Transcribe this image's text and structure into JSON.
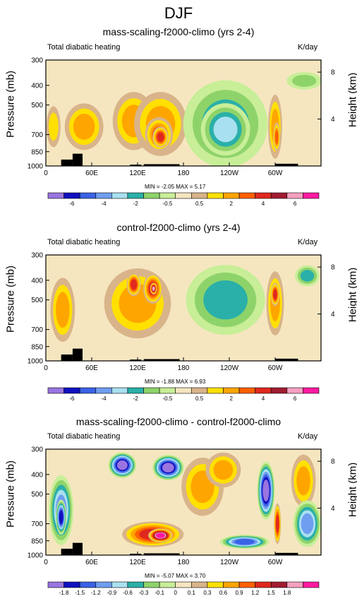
{
  "figure": {
    "title": "DJF"
  },
  "colors": {
    "frame": "#000000",
    "background": "#ffffff"
  },
  "chart_data": [
    {
      "type": "heatmap",
      "title": "mass-scaling-f2000-climo (yrs 2-4)",
      "left_label": "Total diabatic heating",
      "right_label": "K/day",
      "ylabel": "Pressure (mb)",
      "y2label": "Height (km)",
      "x_ticks": [
        "0",
        "60E",
        "120E",
        "180",
        "120W",
        "60W"
      ],
      "y_ticks": [
        "300",
        "400",
        "500",
        "700",
        "850",
        "1000"
      ],
      "y2_ticks": [
        "8",
        "4"
      ],
      "ylim": [
        1000,
        300
      ],
      "y_scale": "log",
      "min_max_text": "MIN = -2.05  MAX =  5.17",
      "min": -2.05,
      "max": 5.17,
      "colorbar": {
        "colors": [
          "#9a74e0",
          "#1010c0",
          "#3a62e6",
          "#6f9df0",
          "#a9e0f0",
          "#2ab0a8",
          "#8ed36a",
          "#c8ee98",
          "#f5e6c0",
          "#d9b48a",
          "#ffe000",
          "#ffa500",
          "#ff6000",
          "#e0281e",
          "#a01c30",
          "#f5a0c0",
          "#ff1aa0"
        ],
        "labels": [
          "-6",
          "-4",
          "-2",
          "-0.5",
          "0.5",
          "2",
          "4",
          "6"
        ]
      },
      "features": [
        {
          "lon": 50,
          "p": 640,
          "rx": 22,
          "ry": 0.4,
          "level": 11
        },
        {
          "lon": 115,
          "p": 600,
          "rx": 24,
          "ry": 0.5,
          "level": 11
        },
        {
          "lon": 150,
          "p": 620,
          "rx": 30,
          "ry": 0.55,
          "level": 11
        },
        {
          "lon": 148,
          "p": 700,
          "rx": 16,
          "ry": 0.3,
          "level": 12
        },
        {
          "lon": 150,
          "p": 720,
          "rx": 9,
          "ry": 0.18,
          "level": 13
        },
        {
          "lon": 10,
          "p": 640,
          "rx": 8,
          "ry": 0.35,
          "level": 10
        },
        {
          "lon": 235,
          "p": 620,
          "rx": 48,
          "ry": 0.75,
          "level": 5
        },
        {
          "lon": 235,
          "p": 660,
          "rx": 28,
          "ry": 0.45,
          "level": 4
        },
        {
          "lon": 300,
          "p": 640,
          "rx": 8,
          "ry": 0.55,
          "level": 11
        },
        {
          "lon": 302,
          "p": 720,
          "rx": 4,
          "ry": 0.25,
          "level": 12
        },
        {
          "lon": 338,
          "p": 380,
          "rx": 20,
          "ry": 0.15,
          "level": 6
        }
      ]
    },
    {
      "type": "heatmap",
      "title": "control-f2000-climo (yrs 2-4)",
      "left_label": "Total diabatic heating",
      "right_label": "K/day",
      "ylabel": "Pressure (mb)",
      "y2label": "Height (km)",
      "x_ticks": [
        "0",
        "60E",
        "120E",
        "180",
        "120W",
        "60W"
      ],
      "y_ticks": [
        "300",
        "400",
        "500",
        "700",
        "850",
        "1000"
      ],
      "y2_ticks": [
        "8",
        "4"
      ],
      "ylim": [
        1000,
        300
      ],
      "y_scale": "log",
      "min_max_text": "MIN = -1.88  MAX =  6.93",
      "min": -1.88,
      "max": 6.93,
      "colorbar": {
        "colors": [
          "#9a74e0",
          "#1010c0",
          "#3a62e6",
          "#6f9df0",
          "#a9e0f0",
          "#2ab0a8",
          "#8ed36a",
          "#c8ee98",
          "#f5e6c0",
          "#d9b48a",
          "#ffe000",
          "#ffa500",
          "#ff6000",
          "#e0281e",
          "#a01c30",
          "#f5a0c0",
          "#ff1aa0"
        ],
        "labels": [
          "-6",
          "-4",
          "-2",
          "-0.5",
          "0.5",
          "2",
          "4",
          "6"
        ]
      },
      "features": [
        {
          "lon": 22,
          "p": 560,
          "rx": 14,
          "ry": 0.55,
          "level": 11
        },
        {
          "lon": 120,
          "p": 520,
          "rx": 38,
          "ry": 0.6,
          "level": 11
        },
        {
          "lon": 115,
          "p": 420,
          "rx": 8,
          "ry": 0.2,
          "level": 13
        },
        {
          "lon": 140,
          "p": 440,
          "rx": 11,
          "ry": 0.26,
          "level": 13
        },
        {
          "lon": 141,
          "p": 440,
          "rx": 4,
          "ry": 0.1,
          "level": 15
        },
        {
          "lon": 235,
          "p": 500,
          "rx": 45,
          "ry": 0.6,
          "level": 5
        },
        {
          "lon": 300,
          "p": 520,
          "rx": 10,
          "ry": 0.55,
          "level": 11
        },
        {
          "lon": 300,
          "p": 470,
          "rx": 5,
          "ry": 0.2,
          "level": 13
        },
        {
          "lon": 342,
          "p": 380,
          "rx": 14,
          "ry": 0.18,
          "level": 5
        }
      ]
    },
    {
      "type": "heatmap",
      "title": "mass-scaling-f2000-climo - control-f2000-climo",
      "left_label": "Total diabatic heating",
      "right_label": "K/day",
      "ylabel": "Pressure (mb)",
      "y2label": "Height (km)",
      "x_ticks": [
        "0",
        "60E",
        "120E",
        "180",
        "120W",
        "60W"
      ],
      "y_ticks": [
        "300",
        "400",
        "500",
        "700",
        "850",
        "1000"
      ],
      "y2_ticks": [
        "8",
        "4"
      ],
      "ylim": [
        1000,
        300
      ],
      "y_scale": "log",
      "min_max_text": "MIN = -5.07  MAX =  3.70",
      "min": -5.07,
      "max": 3.7,
      "colorbar": {
        "colors": [
          "#9a74e0",
          "#1010c0",
          "#3a62e6",
          "#6f9df0",
          "#a9e0f0",
          "#2ab0a8",
          "#8ed36a",
          "#c8ee98",
          "#f5e6c0",
          "#d9b48a",
          "#ffe000",
          "#ffa500",
          "#ff6000",
          "#e0281e",
          "#a01c30",
          "#f5a0c0",
          "#ff1aa0"
        ],
        "labels": [
          "-1.8",
          "-1.5",
          "-1.2",
          "-0.9",
          "-0.6",
          "-0.3",
          "-0.1",
          "0",
          "0.1",
          "0.3",
          "0.6",
          "0.9",
          "1.2",
          "1.5",
          "1.8"
        ]
      },
      "features": [
        {
          "lon": 20,
          "p": 600,
          "rx": 14,
          "ry": 0.6,
          "level": 3
        },
        {
          "lon": 20,
          "p": 650,
          "rx": 6,
          "ry": 0.3,
          "level": 1
        },
        {
          "lon": 100,
          "p": 360,
          "rx": 16,
          "ry": 0.22,
          "level": 0
        },
        {
          "lon": 160,
          "p": 370,
          "rx": 18,
          "ry": 0.22,
          "level": 0
        },
        {
          "lon": 140,
          "p": 790,
          "rx": 35,
          "ry": 0.22,
          "level": 13
        },
        {
          "lon": 150,
          "p": 800,
          "rx": 14,
          "ry": 0.12,
          "level": 16
        },
        {
          "lon": 205,
          "p": 460,
          "rx": 24,
          "ry": 0.5,
          "level": 11
        },
        {
          "lon": 232,
          "p": 380,
          "rx": 20,
          "ry": 0.3,
          "level": 11
        },
        {
          "lon": 260,
          "p": 860,
          "rx": 28,
          "ry": 0.12,
          "level": 2
        },
        {
          "lon": 288,
          "p": 480,
          "rx": 10,
          "ry": 0.5,
          "level": 0
        },
        {
          "lon": 303,
          "p": 700,
          "rx": 4,
          "ry": 0.35,
          "level": 13
        },
        {
          "lon": 337,
          "p": 430,
          "rx": 14,
          "ry": 0.45,
          "level": 11
        },
        {
          "lon": 342,
          "p": 700,
          "rx": 16,
          "ry": 0.4,
          "level": 3
        }
      ]
    }
  ]
}
